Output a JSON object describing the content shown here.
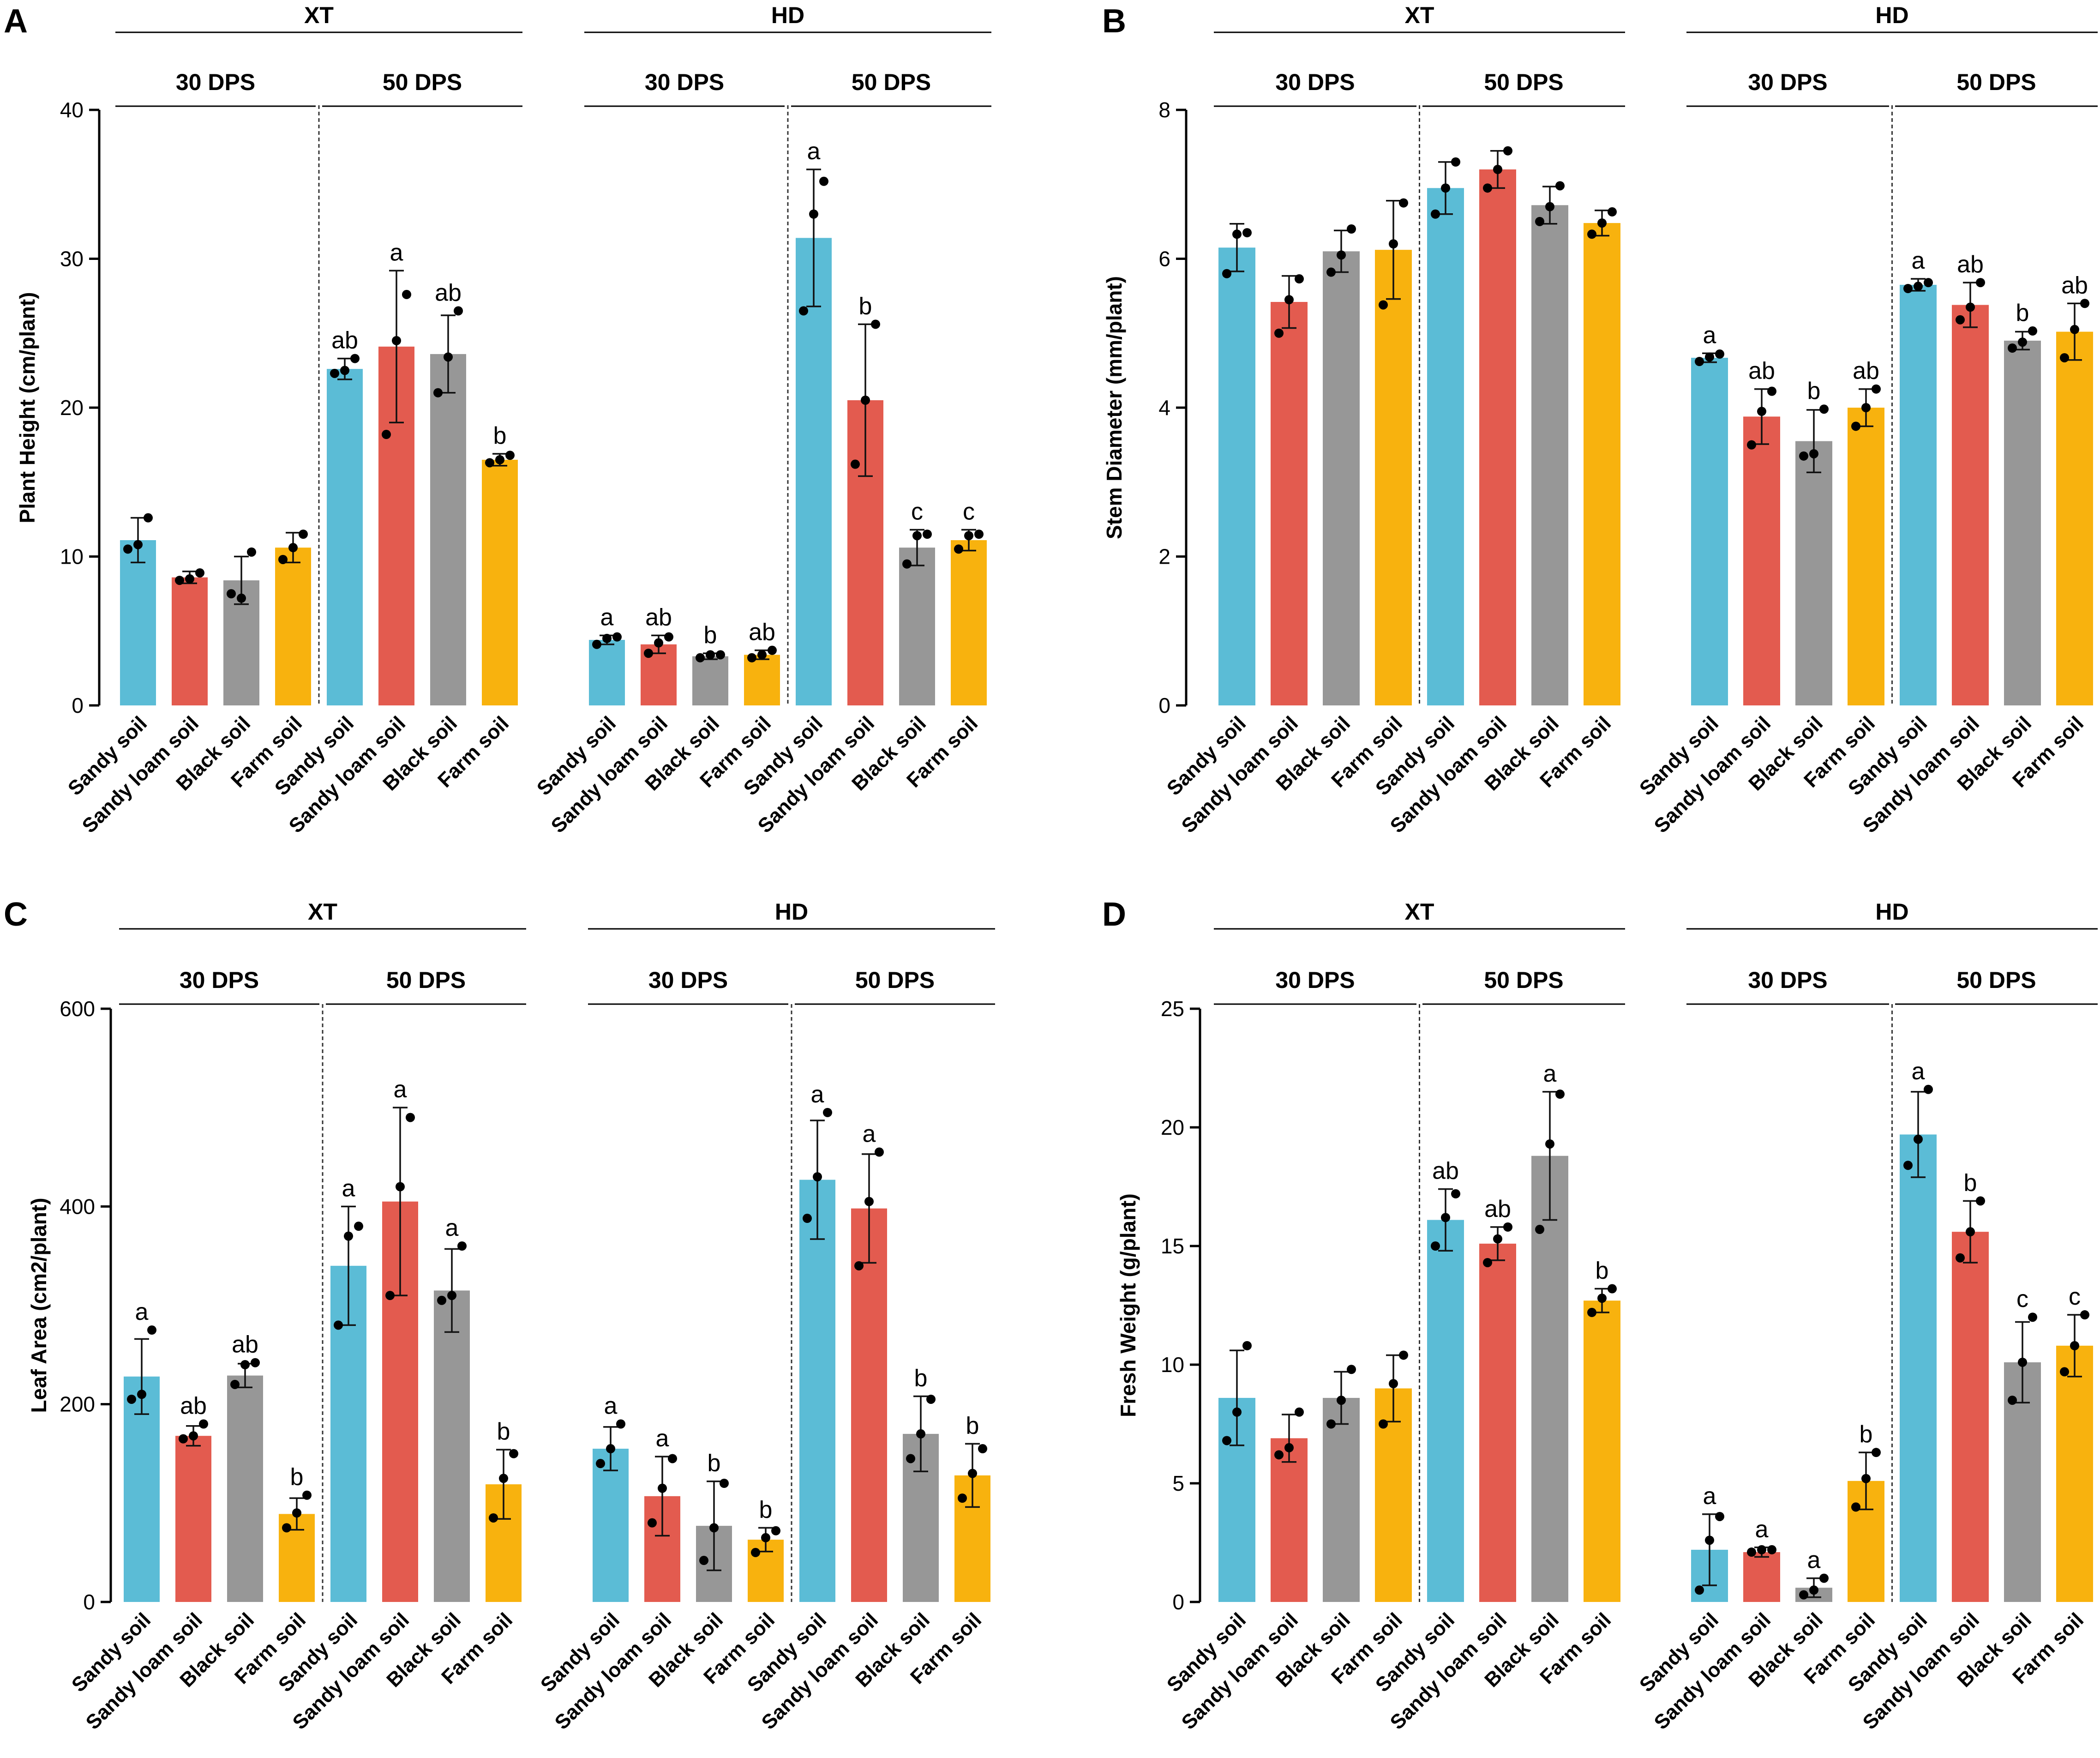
{
  "figure": {
    "colors": {
      "Sandy soil": "#5bbcd6",
      "Sandy loam soil": "#e35b4f",
      "Black soil": "#979797",
      "Farm soil": "#f8b20e"
    },
    "bar_order": [
      "Sandy soil",
      "Sandy loam soil",
      "Black soil",
      "Farm soil"
    ]
  },
  "chart_data": [
    {
      "panel": "A",
      "type": "bar",
      "ylabel": "Plant  Height  (cm/plant)",
      "ylim": [
        0,
        40
      ],
      "yticks": [
        0,
        10,
        20,
        30,
        40
      ],
      "sites": [
        "XT",
        "HD"
      ],
      "stages": [
        "30 DPS",
        "50 DPS"
      ],
      "categories": [
        "Sandy soil",
        "Sandy loam soil",
        "Black soil",
        "Farm soil"
      ],
      "groups": [
        {
          "site": "XT",
          "stage": "30 DPS",
          "values": [
            11.1,
            8.6,
            8.4,
            10.6
          ],
          "errors": [
            1.5,
            0.4,
            1.6,
            1.0
          ],
          "points": [
            [
              10.5,
              10.8,
              12.6
            ],
            [
              8.4,
              8.5,
              8.9
            ],
            [
              7.5,
              7.2,
              10.3
            ],
            [
              9.8,
              10.6,
              11.5
            ]
          ],
          "letters": [
            "",
            "",
            "",
            ""
          ]
        },
        {
          "site": "XT",
          "stage": "50 DPS",
          "values": [
            22.6,
            24.1,
            23.6,
            16.5
          ],
          "errors": [
            0.7,
            5.1,
            2.6,
            0.4
          ],
          "points": [
            [
              22.3,
              22.5,
              23.3
            ],
            [
              18.2,
              24.5,
              27.6
            ],
            [
              21.0,
              23.4,
              26.5
            ],
            [
              16.3,
              16.5,
              16.8
            ]
          ],
          "letters": [
            "ab",
            "a",
            "ab",
            "b"
          ]
        },
        {
          "site": "HD",
          "stage": "30 DPS",
          "values": [
            4.4,
            4.1,
            3.3,
            3.4
          ],
          "errors": [
            0.3,
            0.6,
            0.2,
            0.3
          ],
          "points": [
            [
              4.1,
              4.5,
              4.6
            ],
            [
              3.5,
              4.2,
              4.6
            ],
            [
              3.2,
              3.4,
              3.4
            ],
            [
              3.2,
              3.4,
              3.7
            ]
          ],
          "letters": [
            "a",
            "ab",
            "b",
            "ab"
          ]
        },
        {
          "site": "HD",
          "stage": "50 DPS",
          "values": [
            31.4,
            20.5,
            10.6,
            11.1
          ],
          "errors": [
            4.6,
            5.1,
            1.2,
            0.7
          ],
          "points": [
            [
              26.5,
              33.0,
              35.2
            ],
            [
              16.2,
              20.5,
              25.6
            ],
            [
              9.5,
              11.4,
              11.5
            ],
            [
              10.5,
              11.4,
              11.5
            ]
          ],
          "letters": [
            "a",
            "b",
            "c",
            "c"
          ]
        }
      ]
    },
    {
      "panel": "B",
      "type": "bar",
      "ylabel": "Stem Diameter  (mm/plant)",
      "ylim": [
        0,
        8
      ],
      "yticks": [
        0,
        2,
        4,
        6,
        8
      ],
      "sites": [
        "XT",
        "HD"
      ],
      "stages": [
        "30 DPS",
        "50 DPS"
      ],
      "categories": [
        "Sandy soil",
        "Sandy loam soil",
        "Black soil",
        "Farm soil"
      ],
      "groups": [
        {
          "site": "XT",
          "stage": "30 DPS",
          "values": [
            6.15,
            5.42,
            6.1,
            6.12
          ],
          "errors": [
            0.32,
            0.35,
            0.28,
            0.66
          ],
          "points": [
            [
              5.8,
              6.33,
              6.35
            ],
            [
              5.0,
              5.45,
              5.73
            ],
            [
              5.82,
              6.05,
              6.4
            ],
            [
              5.38,
              6.2,
              6.75
            ]
          ],
          "letters": [
            "",
            "",
            "",
            ""
          ]
        },
        {
          "site": "XT",
          "stage": "50 DPS",
          "values": [
            6.95,
            7.2,
            6.72,
            6.48
          ],
          "errors": [
            0.35,
            0.25,
            0.25,
            0.17
          ],
          "points": [
            [
              6.6,
              6.95,
              7.3
            ],
            [
              6.95,
              7.2,
              7.45
            ],
            [
              6.5,
              6.7,
              6.98
            ],
            [
              6.33,
              6.48,
              6.63
            ]
          ],
          "letters": [
            "",
            "",
            "",
            ""
          ]
        },
        {
          "site": "HD",
          "stage": "30 DPS",
          "values": [
            4.67,
            3.88,
            3.55,
            4.0
          ],
          "errors": [
            0.06,
            0.37,
            0.42,
            0.25
          ],
          "points": [
            [
              4.62,
              4.68,
              4.72
            ],
            [
              3.5,
              3.95,
              4.22
            ],
            [
              3.35,
              3.38,
              3.98
            ],
            [
              3.75,
              4.0,
              4.25
            ]
          ],
          "letters": [
            "a",
            "ab",
            "b",
            "ab"
          ]
        },
        {
          "site": "HD",
          "stage": "50 DPS",
          "values": [
            5.65,
            5.38,
            4.9,
            5.02
          ],
          "errors": [
            0.08,
            0.3,
            0.12,
            0.38
          ],
          "points": [
            [
              5.6,
              5.63,
              5.68
            ],
            [
              5.18,
              5.35,
              5.68
            ],
            [
              4.8,
              4.88,
              5.03
            ],
            [
              4.67,
              5.05,
              5.4
            ]
          ],
          "letters": [
            "a",
            "ab",
            "b",
            "ab"
          ]
        }
      ]
    },
    {
      "panel": "C",
      "type": "bar",
      "ylabel": "Leaf   Area  (cm2/plant)",
      "ylim": [
        0,
        600
      ],
      "yticks": [
        0,
        200,
        400,
        600
      ],
      "sites": [
        "XT",
        "HD"
      ],
      "stages": [
        "30 DPS",
        "50 DPS"
      ],
      "categories": [
        "Sandy soil",
        "Sandy loam soil",
        "Black soil",
        "Farm soil"
      ],
      "groups": [
        {
          "site": "XT",
          "stage": "30 DPS",
          "values": [
            228,
            168,
            229,
            89
          ],
          "errors": [
            38,
            10,
            12,
            16
          ],
          "points": [
            [
              205,
              210,
              275
            ],
            [
              165,
              168,
              180
            ],
            [
              220,
              240,
              242
            ],
            [
              75,
              90,
              108
            ]
          ],
          "letters": [
            "a",
            "ab",
            "ab",
            "b"
          ]
        },
        {
          "site": "XT",
          "stage": "50 DPS",
          "values": [
            340,
            405,
            315,
            119
          ],
          "errors": [
            60,
            95,
            42,
            35
          ],
          "points": [
            [
              280,
              370,
              380
            ],
            [
              310,
              420,
              490
            ],
            [
              305,
              310,
              360
            ],
            [
              85,
              125,
              150
            ]
          ],
          "letters": [
            "a",
            "a",
            "a",
            "b"
          ]
        },
        {
          "site": "HD",
          "stage": "30 DPS",
          "values": [
            155,
            107,
            77,
            63
          ],
          "errors": [
            22,
            40,
            45,
            12
          ],
          "points": [
            [
              140,
              155,
              180
            ],
            [
              80,
              115,
              145
            ],
            [
              42,
              75,
              120
            ],
            [
              50,
              65,
              72
            ]
          ],
          "letters": [
            "a",
            "a",
            "b",
            "b"
          ]
        },
        {
          "site": "HD",
          "stage": "50 DPS",
          "values": [
            427,
            398,
            170,
            128
          ],
          "errors": [
            60,
            55,
            38,
            32
          ],
          "points": [
            [
              388,
              430,
              495
            ],
            [
              340,
              405,
              455
            ],
            [
              145,
              170,
              205
            ],
            [
              105,
              130,
              155
            ]
          ],
          "letters": [
            "a",
            "a",
            "b",
            "b"
          ]
        }
      ]
    },
    {
      "panel": "D",
      "type": "bar",
      "ylabel": "Fresh Weight   (g/plant)",
      "ylim": [
        0,
        25
      ],
      "yticks": [
        0,
        5,
        10,
        15,
        20,
        25
      ],
      "sites": [
        "XT",
        "HD"
      ],
      "stages": [
        "30 DPS",
        "50 DPS"
      ],
      "categories": [
        "Sandy soil",
        "Sandy loam soil",
        "Black soil",
        "Farm soil"
      ],
      "groups": [
        {
          "site": "XT",
          "stage": "30 DPS",
          "values": [
            8.6,
            6.9,
            8.6,
            9.0
          ],
          "errors": [
            2.0,
            1.0,
            1.1,
            1.4
          ],
          "points": [
            [
              6.8,
              8.0,
              10.8
            ],
            [
              6.2,
              6.5,
              8.0
            ],
            [
              7.5,
              8.5,
              9.8
            ],
            [
              7.5,
              9.2,
              10.4
            ]
          ],
          "letters": [
            "",
            "",
            "",
            ""
          ]
        },
        {
          "site": "XT",
          "stage": "50 DPS",
          "values": [
            16.1,
            15.1,
            18.8,
            12.7
          ],
          "errors": [
            1.3,
            0.7,
            2.7,
            0.5
          ],
          "points": [
            [
              15.0,
              16.2,
              17.2
            ],
            [
              14.3,
              15.3,
              15.8
            ],
            [
              15.7,
              19.3,
              21.4
            ],
            [
              12.2,
              12.8,
              13.2
            ]
          ],
          "letters": [
            "ab",
            "ab",
            "a",
            "b"
          ]
        },
        {
          "site": "HD",
          "stage": "30 DPS",
          "values": [
            2.2,
            2.1,
            0.6,
            5.1
          ],
          "errors": [
            1.5,
            0.2,
            0.4,
            1.2
          ],
          "points": [
            [
              0.5,
              2.6,
              3.6
            ],
            [
              2.1,
              2.2,
              2.2
            ],
            [
              0.3,
              0.5,
              1.0
            ],
            [
              4.0,
              5.2,
              6.3
            ]
          ],
          "letters": [
            "a",
            "a",
            "a",
            "b"
          ]
        },
        {
          "site": "HD",
          "stage": "50 DPS",
          "values": [
            19.7,
            15.6,
            10.1,
            10.8
          ],
          "errors": [
            1.8,
            1.3,
            1.7,
            1.3
          ],
          "points": [
            [
              18.4,
              19.5,
              21.6
            ],
            [
              14.5,
              15.6,
              16.9
            ],
            [
              8.5,
              10.1,
              12.0
            ],
            [
              9.7,
              10.8,
              12.1
            ]
          ],
          "letters": [
            "a",
            "b",
            "c",
            "c"
          ]
        }
      ]
    }
  ]
}
